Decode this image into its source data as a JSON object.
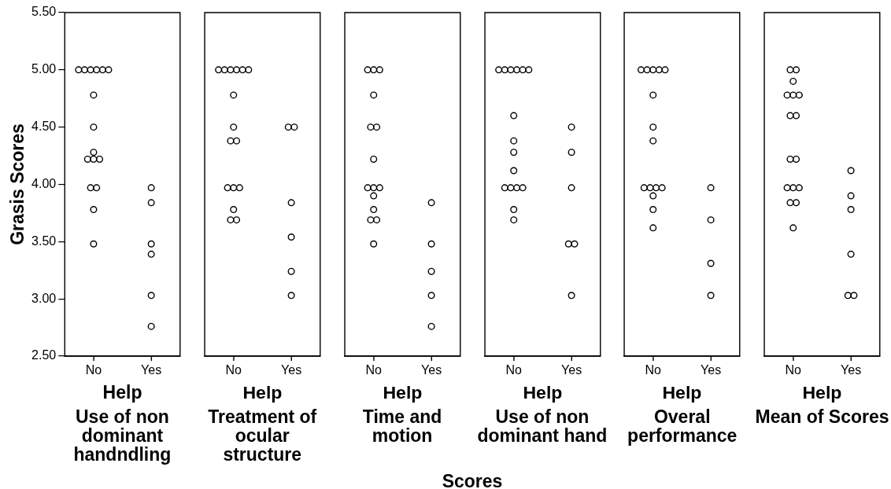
{
  "chart_data": [
    {
      "type": "scatter",
      "title": "Use of non dominant handndling",
      "xlabel": "Help",
      "ylabel": "Grasis Scores",
      "annotations": [
        "Scores"
      ],
      "categories": [
        "No",
        "Yes"
      ],
      "marker": "circle",
      "ylim": [
        2.5,
        5.5
      ],
      "yticks": [
        {
          "value": 2.5,
          "label": "2.50"
        },
        {
          "value": 3,
          "label": "3.00"
        },
        {
          "value": 3.5,
          "label": "3.50"
        },
        {
          "value": 4,
          "label": "4.00"
        },
        {
          "value": 4.5,
          "label": "4.50"
        },
        {
          "value": 5,
          "label": "5.00"
        },
        {
          "value": 5.5,
          "label": "5.50"
        }
      ],
      "series": [
        {
          "color": "#000000",
          "x": [
            "No",
            "No",
            "No",
            "No",
            "No",
            "No",
            "No",
            "No",
            "No",
            "No",
            "No",
            "No",
            "No",
            "No",
            "No",
            "No",
            "Yes",
            "Yes",
            "Yes",
            "Yes",
            "Yes",
            "Yes"
          ],
          "values": [
            5,
            5,
            5,
            5,
            5,
            5,
            4.78,
            4.5,
            4.28,
            4.22,
            4.22,
            4.22,
            3.97,
            3.97,
            3.78,
            3.48,
            3.97,
            3.84,
            3.48,
            3.39,
            3.03,
            2.76
          ]
        }
      ]
    },
    {
      "type": "scatter",
      "title": "Treatment of ocular structure",
      "xlabel": "Help",
      "categories": [
        "No",
        "Yes"
      ],
      "marker": "circle",
      "ylim": [
        2.5,
        5.5
      ],
      "tick_labels": "x",
      "series": [
        {
          "color": "#000000",
          "x": [
            "No",
            "No",
            "No",
            "No",
            "No",
            "No",
            "No",
            "No",
            "No",
            "No",
            "No",
            "No",
            "No",
            "No",
            "No",
            "No",
            "Yes",
            "Yes",
            "Yes",
            "Yes",
            "Yes",
            "Yes"
          ],
          "values": [
            5,
            5,
            5,
            5,
            5,
            5,
            4.78,
            4.5,
            4.38,
            4.38,
            3.97,
            3.97,
            3.97,
            3.78,
            3.69,
            3.69,
            4.5,
            4.5,
            3.84,
            3.54,
            3.24,
            3.03
          ]
        }
      ]
    },
    {
      "type": "scatter",
      "title": "Time and motion",
      "xlabel": "Help",
      "categories": [
        "No",
        "Yes"
      ],
      "marker": "circle",
      "ylim": [
        2.5,
        5.5
      ],
      "tick_labels": "x",
      "series": [
        {
          "color": "#000000",
          "x": [
            "No",
            "No",
            "No",
            "No",
            "No",
            "No",
            "No",
            "No",
            "No",
            "No",
            "No",
            "No",
            "No",
            "No",
            "No",
            "Yes",
            "Yes",
            "Yes",
            "Yes",
            "Yes"
          ],
          "values": [
            5,
            5,
            5,
            4.78,
            4.5,
            4.5,
            4.22,
            3.97,
            3.97,
            3.97,
            3.9,
            3.78,
            3.69,
            3.69,
            3.48,
            3.84,
            3.48,
            3.24,
            3.03,
            2.76
          ]
        }
      ]
    },
    {
      "type": "scatter",
      "title": "Use of non dominant hand",
      "xlabel": "Help",
      "categories": [
        "No",
        "Yes"
      ],
      "marker": "circle",
      "ylim": [
        2.5,
        5.5
      ],
      "tick_labels": "x",
      "series": [
        {
          "color": "#000000",
          "x": [
            "No",
            "No",
            "No",
            "No",
            "No",
            "No",
            "No",
            "No",
            "No",
            "No",
            "No",
            "No",
            "No",
            "No",
            "No",
            "No",
            "Yes",
            "Yes",
            "Yes",
            "Yes",
            "Yes",
            "Yes"
          ],
          "values": [
            5,
            5,
            5,
            5,
            5,
            5,
            4.6,
            4.38,
            4.28,
            4.12,
            3.97,
            3.97,
            3.97,
            3.97,
            3.78,
            3.69,
            4.5,
            4.28,
            3.97,
            3.48,
            3.48,
            3.03
          ]
        }
      ]
    },
    {
      "type": "scatter",
      "title": "Overal performance",
      "xlabel": "Help",
      "categories": [
        "No",
        "Yes"
      ],
      "marker": "circle",
      "ylim": [
        2.5,
        5.5
      ],
      "tick_labels": "x",
      "series": [
        {
          "color": "#000000",
          "x": [
            "No",
            "No",
            "No",
            "No",
            "No",
            "No",
            "No",
            "No",
            "No",
            "No",
            "No",
            "No",
            "No",
            "No",
            "No",
            "Yes",
            "Yes",
            "Yes",
            "Yes"
          ],
          "values": [
            5,
            5,
            5,
            5,
            5,
            4.78,
            4.5,
            4.38,
            3.97,
            3.97,
            3.97,
            3.97,
            3.9,
            3.78,
            3.62,
            3.97,
            3.69,
            3.31,
            3.03
          ]
        }
      ]
    },
    {
      "type": "scatter",
      "title": "Mean of Scores",
      "xlabel": "Help",
      "categories": [
        "No",
        "Yes"
      ],
      "marker": "circle",
      "ylim": [
        2.5,
        5.5
      ],
      "tick_labels": "x",
      "series": [
        {
          "color": "#000000",
          "x": [
            "No",
            "No",
            "No",
            "No",
            "No",
            "No",
            "No",
            "No",
            "No",
            "No",
            "No",
            "No",
            "No",
            "No",
            "No",
            "No",
            "Yes",
            "Yes",
            "Yes",
            "Yes",
            "Yes",
            "Yes"
          ],
          "values": [
            5,
            5,
            4.9,
            4.78,
            4.78,
            4.78,
            4.6,
            4.6,
            4.22,
            4.22,
            3.97,
            3.97,
            3.97,
            3.84,
            3.84,
            3.62,
            4.12,
            3.9,
            3.78,
            3.39,
            3.03,
            3.03
          ]
        }
      ]
    }
  ]
}
